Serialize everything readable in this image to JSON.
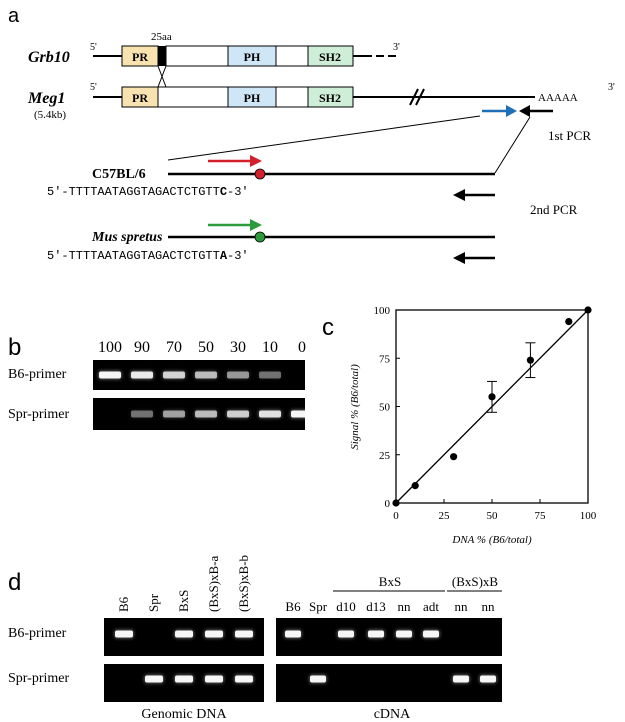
{
  "panel_a": {
    "letter": "a",
    "genes": {
      "grb10": {
        "name": "Grb10",
        "five": "5'",
        "three": "3'",
        "insert": "25aa"
      },
      "meg1": {
        "name": "Meg1",
        "size": "(5.4kb)",
        "five": "5'",
        "polyA": "AAAAA",
        "three": "3'"
      }
    },
    "domains": {
      "pr": "PR",
      "ph": "PH",
      "sh2": "SH2"
    },
    "pcr1": "1st PCR",
    "pcr2": "2nd PCR",
    "strain_b6": "C57BL/6",
    "seq_b6": {
      "prefix": "5'-TTTTAATAGGTAGACTCTGTT",
      "snp": "C",
      "suffix": "-3'"
    },
    "strain_spr": "Mus spretus",
    "seq_spr": {
      "prefix": "5'-TTTTAATAGGTAGACTCTGTT",
      "snp": "A",
      "suffix": "-3'"
    },
    "colors": {
      "pr": "#f8e3b0",
      "ph": "#cfe6f6",
      "sh2": "#cfeed8",
      "b6": "#d3202a",
      "spr": "#2a9a3a",
      "blue": "#1f6fb8"
    }
  },
  "panel_b": {
    "letter": "b",
    "lanes": [
      "100",
      "90",
      "70",
      "50",
      "30",
      "10",
      "0"
    ],
    "row_b6": "B6-primer",
    "row_spr": "Spr-primer",
    "b6_intensity": [
      1.0,
      0.9,
      0.75,
      0.6,
      0.4,
      0.22,
      0.0
    ],
    "spr_intensity": [
      0.0,
      0.22,
      0.45,
      0.6,
      0.72,
      0.85,
      1.0
    ]
  },
  "panel_c": {
    "letter": "c",
    "chart_data": {
      "type": "scatter",
      "xlabel": "DNA % (B6/total)",
      "ylabel": "Signal % (B6/total)",
      "xlim": [
        0,
        100
      ],
      "ylim": [
        0,
        100
      ],
      "x_ticks": [
        "0",
        "25",
        "50",
        "75",
        "100"
      ],
      "y_ticks": [
        "0",
        "25",
        "50",
        "75",
        "100"
      ],
      "points": [
        {
          "x": 0,
          "y": 0,
          "err": 0
        },
        {
          "x": 10,
          "y": 9,
          "err": 0
        },
        {
          "x": 30,
          "y": 24,
          "err": 0
        },
        {
          "x": 50,
          "y": 55,
          "err": 8
        },
        {
          "x": 70,
          "y": 74,
          "err": 9
        },
        {
          "x": 90,
          "y": 94,
          "err": 0
        },
        {
          "x": 100,
          "y": 100,
          "err": 0
        }
      ],
      "fit": [
        [
          0,
          0
        ],
        [
          100,
          100
        ]
      ]
    }
  },
  "panel_d": {
    "letter": "d",
    "row_b6": "B6-primer",
    "row_spr": "Spr-primer",
    "genomic": {
      "caption": "Genomic DNA",
      "lanes": [
        "B6",
        "Spr",
        "BxS",
        "(BxS)xB-a",
        "(BxS)xB-b"
      ],
      "b6": [
        1,
        0,
        1,
        1,
        1
      ],
      "spr": [
        0,
        1,
        1,
        1,
        1
      ]
    },
    "cdna": {
      "caption": "cDNA",
      "group_bxs": "BxS",
      "group_bxsb": "(BxS)xB",
      "lanes": [
        "B6",
        "Spr",
        "d10",
        "d13",
        "nn",
        "adt",
        "nn",
        "nn"
      ],
      "b6": [
        1,
        0,
        1,
        1,
        1,
        1,
        0,
        0
      ],
      "spr": [
        0,
        1,
        0,
        0,
        0,
        0,
        1,
        1
      ]
    }
  }
}
